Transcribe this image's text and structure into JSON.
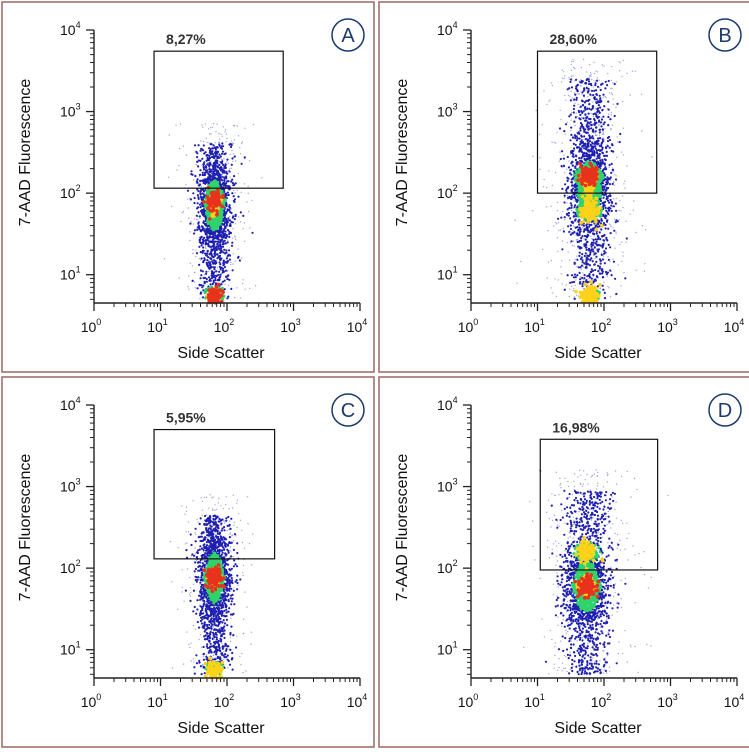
{
  "figure": {
    "colors": {
      "panel_border": "#a0706e",
      "axis": "#222222",
      "gate": "#111111",
      "badge": "#1b3a6b",
      "density_low": "#1f1fb0",
      "density_mid": "#2fd36a",
      "density_high": "#ffd21a",
      "density_peak": "#e8331c",
      "sparse_dots": "#8a90d8"
    }
  },
  "chart_data": [
    {
      "panel_letter": "A",
      "type": "scatter",
      "plot_style": "density dot plot with rectangular gate",
      "xlabel": "Side  Scatter",
      "ylabel": "7-AAD  Fluorescence",
      "x_scale": "log",
      "y_scale": "log",
      "xlim": [
        1,
        10000
      ],
      "ylim": [
        4.5,
        10000
      ],
      "x_ticks": [
        {
          "base": "10",
          "exp": "0"
        },
        {
          "base": "10",
          "exp": "1"
        },
        {
          "base": "10",
          "exp": "2"
        },
        {
          "base": "10",
          "exp": "3"
        },
        {
          "base": "10",
          "exp": "4"
        }
      ],
      "y_ticks": [
        {
          "base": "10",
          "exp": "1"
        },
        {
          "base": "10",
          "exp": "2"
        },
        {
          "base": "10",
          "exp": "3"
        },
        {
          "base": "10",
          "exp": "4"
        }
      ],
      "gate": {
        "x": [
          8,
          700
        ],
        "y": [
          115,
          5500
        ],
        "label": "8,27%"
      },
      "population": {
        "x_center": 65,
        "x_spread_decades": 0.12,
        "y_min": 5,
        "y_max": 400,
        "y_peak": 70,
        "hotspots": [
          {
            "y": 80,
            "level": "peak"
          },
          {
            "y": 5.5,
            "level": "peak"
          }
        ],
        "outliers": "low"
      }
    },
    {
      "panel_letter": "B",
      "type": "scatter",
      "plot_style": "density dot plot with rectangular gate",
      "xlabel": "Side  Scatter",
      "ylabel": "7-AAD  Fluorescence",
      "x_scale": "log",
      "y_scale": "log",
      "xlim": [
        1,
        10000
      ],
      "ylim": [
        4.5,
        10000
      ],
      "x_ticks": [
        {
          "base": "10",
          "exp": "0"
        },
        {
          "base": "10",
          "exp": "1"
        },
        {
          "base": "10",
          "exp": "2"
        },
        {
          "base": "10",
          "exp": "3"
        },
        {
          "base": "10",
          "exp": "4"
        }
      ],
      "y_ticks": [
        {
          "base": "10",
          "exp": "1"
        },
        {
          "base": "10",
          "exp": "2"
        },
        {
          "base": "10",
          "exp": "3"
        },
        {
          "base": "10",
          "exp": "4"
        }
      ],
      "gate": {
        "x": [
          10,
          620
        ],
        "y": [
          100,
          5500
        ],
        "label": "28,60%"
      },
      "population": {
        "x_center": 60,
        "x_spread_decades": 0.16,
        "y_min": 5,
        "y_max": 2500,
        "y_peak": 120,
        "hotspots": [
          {
            "y": 160,
            "level": "peak"
          },
          {
            "y": 60,
            "level": "high"
          },
          {
            "y": 5.5,
            "level": "high"
          }
        ],
        "outliers": "high"
      }
    },
    {
      "panel_letter": "C",
      "type": "scatter",
      "plot_style": "density dot plot with rectangular gate",
      "xlabel": "Side  Scatter",
      "ylabel": "7-AAD  Fluorescence",
      "x_scale": "log",
      "y_scale": "log",
      "xlim": [
        1,
        10000
      ],
      "ylim": [
        4.5,
        10000
      ],
      "x_ticks": [
        {
          "base": "10",
          "exp": "0"
        },
        {
          "base": "10",
          "exp": "1"
        },
        {
          "base": "10",
          "exp": "2"
        },
        {
          "base": "10",
          "exp": "3"
        },
        {
          "base": "10",
          "exp": "4"
        }
      ],
      "y_ticks": [
        {
          "base": "10",
          "exp": "1"
        },
        {
          "base": "10",
          "exp": "2"
        },
        {
          "base": "10",
          "exp": "3"
        },
        {
          "base": "10",
          "exp": "4"
        }
      ],
      "gate": {
        "x": [
          8,
          520
        ],
        "y": [
          130,
          5000
        ],
        "label": "5,95%"
      },
      "population": {
        "x_center": 65,
        "x_spread_decades": 0.12,
        "y_min": 5,
        "y_max": 450,
        "y_peak": 75,
        "hotspots": [
          {
            "y": 75,
            "level": "peak"
          },
          {
            "y": 5.5,
            "level": "high"
          }
        ],
        "outliers": "low"
      }
    },
    {
      "panel_letter": "D",
      "type": "scatter",
      "plot_style": "density dot plot with rectangular gate",
      "xlabel": "Side  Scatter",
      "ylabel": "7-AAD  Fluorescence",
      "x_scale": "log",
      "y_scale": "log",
      "xlim": [
        1,
        10000
      ],
      "ylim": [
        4.5,
        10000
      ],
      "x_ticks": [
        {
          "base": "10",
          "exp": "0"
        },
        {
          "base": "10",
          "exp": "1"
        },
        {
          "base": "10",
          "exp": "2"
        },
        {
          "base": "10",
          "exp": "3"
        },
        {
          "base": "10",
          "exp": "4"
        }
      ],
      "y_ticks": [
        {
          "base": "10",
          "exp": "1"
        },
        {
          "base": "10",
          "exp": "2"
        },
        {
          "base": "10",
          "exp": "3"
        },
        {
          "base": "10",
          "exp": "4"
        }
      ],
      "gate": {
        "x": [
          11,
          640
        ],
        "y": [
          95,
          3800
        ],
        "label": "16,98%"
      },
      "population": {
        "x_center": 55,
        "x_spread_decades": 0.17,
        "y_min": 5,
        "y_max": 900,
        "y_peak": 60,
        "hotspots": [
          {
            "y": 60,
            "level": "peak"
          },
          {
            "y": 160,
            "level": "high"
          }
        ],
        "outliers": "mid"
      }
    }
  ]
}
